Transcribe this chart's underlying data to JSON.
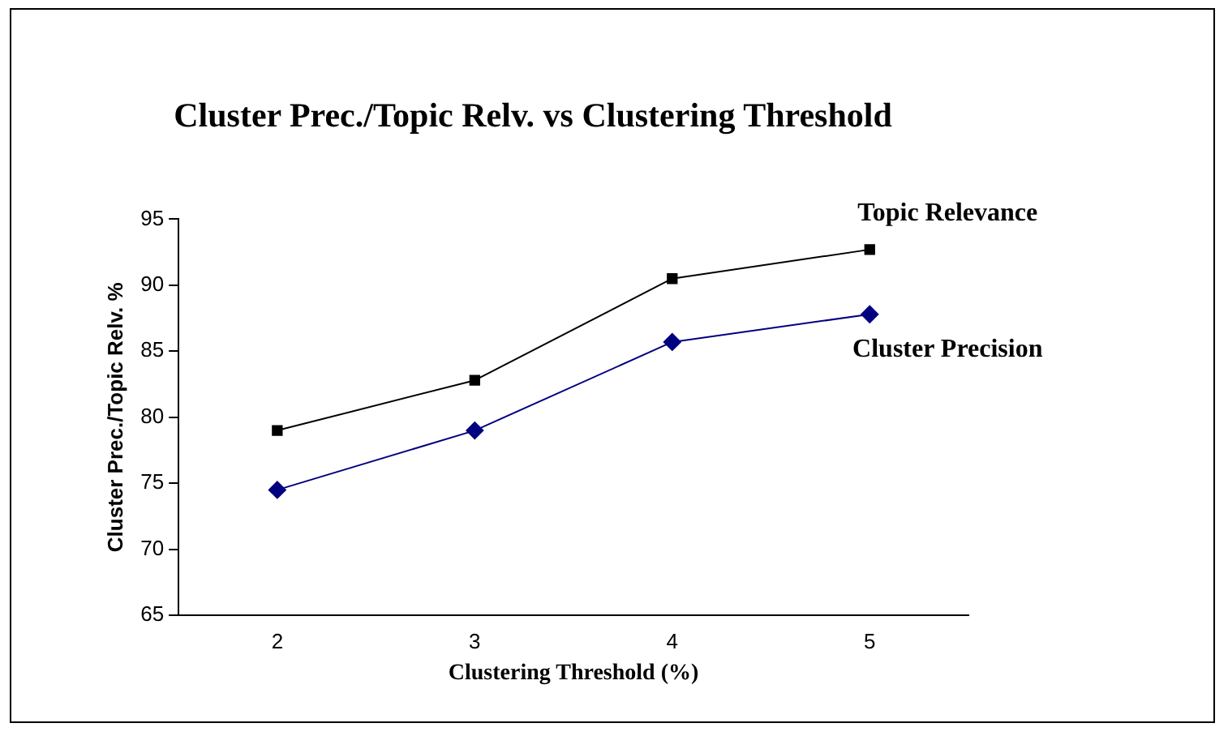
{
  "chart_data": {
    "type": "line",
    "title": "Cluster Prec./Topic Relv. vs Clustering Threshold",
    "xlabel": "Clustering Threshold (%)",
    "ylabel": "Cluster Prec./Topic Relv. %",
    "categories": [
      "2",
      "3",
      "4",
      "5"
    ],
    "series": [
      {
        "name": "Topic Relevance",
        "color": "#000000",
        "marker": "square",
        "values": [
          79,
          82.8,
          90.5,
          92.7
        ]
      },
      {
        "name": "Cluster Precision",
        "color": "#000080",
        "marker": "diamond",
        "values": [
          74.5,
          79,
          85.7,
          87.8
        ]
      }
    ],
    "ylim": [
      65,
      95
    ],
    "yticks": [
      65,
      70,
      75,
      80,
      85,
      90,
      95
    ],
    "grid": false,
    "legend": false
  }
}
